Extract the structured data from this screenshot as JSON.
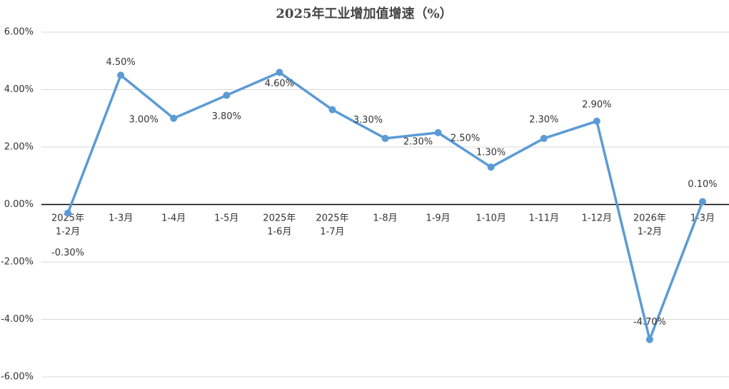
{
  "chart_data": {
    "type": "line",
    "title": "2025年工业增加值增速（%）",
    "categories": [
      [
        "2025年",
        "1-2月"
      ],
      [
        "1-3月"
      ],
      [
        "1-4月"
      ],
      [
        "1-5月"
      ],
      [
        "2025年",
        "1-6月"
      ],
      [
        "2025年",
        "1-7月"
      ],
      [
        "1-8月"
      ],
      [
        "1-9月"
      ],
      [
        "1-10月"
      ],
      [
        "1-11月"
      ],
      [
        "1-12月"
      ],
      [
        "2026年",
        "1-2月"
      ],
      [
        "1-3月"
      ]
    ],
    "series": [
      {
        "name": "工业增加值增速",
        "color": "#5b9bd5",
        "values": [
          -0.3,
          4.5,
          3.0,
          3.8,
          4.6,
          3.3,
          2.3,
          2.5,
          1.3,
          2.3,
          2.9,
          -4.7,
          0.1
        ],
        "value_labels": [
          "-0.30%",
          "4.50%",
          "3.00%",
          "3.80%",
          "4.60%",
          "3.30%",
          "2.30%",
          "2.50%",
          "1.30%",
          "2.30%",
          "2.90%",
          "-4.70%",
          "0.10%"
        ]
      }
    ],
    "ylim": [
      -6,
      6
    ],
    "yticks": [
      {
        "value": -6,
        "label": "-6.00%"
      },
      {
        "value": -4,
        "label": "-4.00%"
      },
      {
        "value": -2,
        "label": "-2.00%"
      },
      {
        "value": 0,
        "label": "0.00%"
      },
      {
        "value": 2,
        "label": "2.00%"
      },
      {
        "value": 4,
        "label": "4.00%"
      },
      {
        "value": 6,
        "label": "6.00%"
      }
    ],
    "grid": true
  }
}
